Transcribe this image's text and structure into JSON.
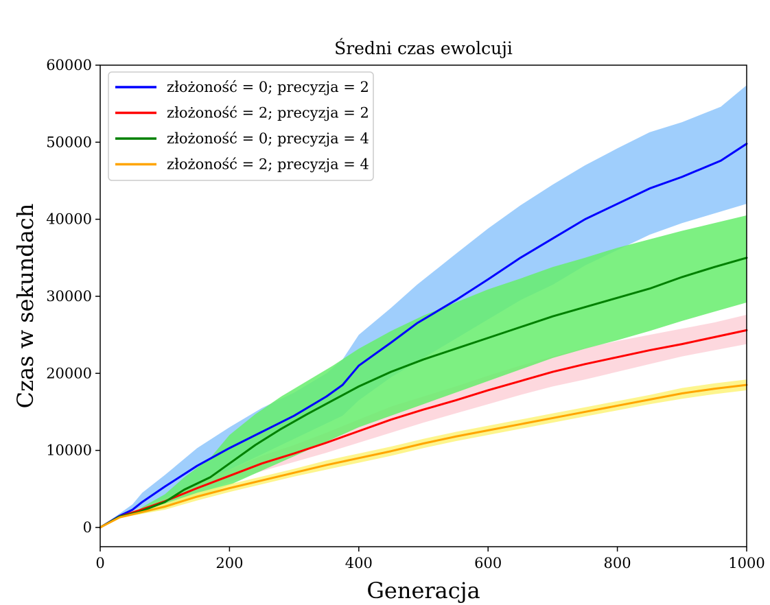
{
  "chart_data": {
    "type": "line",
    "title": "Średni czas ewolcuji",
    "xlabel": "Generacja",
    "ylabel": "Czas w sekundach",
    "xlim": [
      0,
      1000
    ],
    "ylim": [
      -2500,
      60000
    ],
    "xticks": [
      0,
      200,
      400,
      600,
      800,
      1000
    ],
    "yticks": [
      0,
      10000,
      20000,
      30000,
      40000,
      50000,
      60000
    ],
    "grid": false,
    "legend_position": "top-left",
    "series": [
      {
        "name": "złożoność = 0; precyzja = 2",
        "color": "#0000ff",
        "band_color": "#8ec5fb",
        "x": [
          0,
          30,
          50,
          65,
          100,
          150,
          200,
          250,
          300,
          350,
          375,
          400,
          450,
          490,
          550,
          600,
          650,
          700,
          750,
          800,
          850,
          900,
          960,
          1000
        ],
        "y": [
          0,
          1500,
          2300,
          3300,
          5300,
          8000,
          10300,
          12400,
          14500,
          17000,
          18500,
          21000,
          24000,
          26500,
          29500,
          32200,
          35000,
          37500,
          40000,
          42000,
          44000,
          45500,
          47600,
          49800
        ],
        "lower": [
          0,
          1300,
          1700,
          2300,
          3300,
          5300,
          7500,
          9500,
          11500,
          13500,
          14500,
          16500,
          19500,
          21500,
          24500,
          27000,
          29500,
          31500,
          34000,
          36000,
          38000,
          39500,
          41000,
          42000
        ],
        "upper": [
          0,
          1800,
          3000,
          4500,
          6800,
          10300,
          13000,
          15500,
          17500,
          20000,
          21800,
          25000,
          28500,
          31500,
          35500,
          38800,
          41800,
          44500,
          47000,
          49200,
          51300,
          52600,
          54600,
          57400
        ]
      },
      {
        "name": "złożoność = 2; precyzja = 2",
        "color": "#ff0000",
        "band_color": "#fdd1d8",
        "x": [
          0,
          30,
          60,
          100,
          150,
          200,
          250,
          300,
          350,
          400,
          450,
          500,
          550,
          600,
          650,
          700,
          750,
          800,
          850,
          900,
          950,
          1000
        ],
        "y": [
          0,
          1400,
          2200,
          3400,
          5100,
          6700,
          8300,
          9600,
          11000,
          12500,
          14000,
          15300,
          16500,
          17800,
          19000,
          20200,
          21200,
          22100,
          23000,
          23800,
          24700,
          25600
        ],
        "lower": [
          0,
          1300,
          1900,
          3000,
          4400,
          5900,
          7300,
          8500,
          9700,
          11000,
          12300,
          13600,
          14800,
          16000,
          17200,
          18300,
          19200,
          20200,
          21200,
          22200,
          23000,
          23800
        ],
        "upper": [
          0,
          1500,
          2500,
          3800,
          5800,
          7500,
          9300,
          10700,
          12300,
          14000,
          15700,
          17000,
          18300,
          19700,
          21000,
          22200,
          23300,
          24200,
          25000,
          25800,
          26600,
          27600
        ]
      },
      {
        "name": "złożoność = 0; precyzja = 4",
        "color": "#008000",
        "band_color": "#66ed6c",
        "x": [
          0,
          30,
          60,
          100,
          130,
          170,
          200,
          240,
          280,
          320,
          360,
          400,
          450,
          500,
          550,
          600,
          650,
          700,
          750,
          800,
          850,
          900,
          950,
          1000
        ],
        "y": [
          0,
          1400,
          2000,
          3300,
          4900,
          6500,
          8300,
          10700,
          12800,
          14700,
          16500,
          18300,
          20200,
          21800,
          23200,
          24600,
          26000,
          27400,
          28600,
          29800,
          31000,
          32500,
          33800,
          35000
        ],
        "lower": [
          0,
          1300,
          1700,
          2500,
          3500,
          4500,
          5500,
          7000,
          8500,
          10000,
          11500,
          13000,
          14500,
          16000,
          17500,
          19000,
          20500,
          22000,
          23200,
          24300,
          25500,
          26800,
          28000,
          29200
        ],
        "upper": [
          0,
          1500,
          2400,
          4300,
          6500,
          9000,
          12000,
          14700,
          17000,
          19000,
          21000,
          23200,
          25500,
          27500,
          29200,
          30900,
          32300,
          33800,
          35000,
          36300,
          37400,
          38500,
          39500,
          40500
        ]
      },
      {
        "name": "złożoność = 2; precyzja = 4",
        "color": "#ffa500",
        "band_color": "#fdf37a",
        "x": [
          0,
          30,
          60,
          100,
          150,
          200,
          250,
          300,
          350,
          400,
          450,
          500,
          550,
          600,
          650,
          700,
          750,
          800,
          850,
          900,
          950,
          1000
        ],
        "y": [
          0,
          1300,
          1900,
          2700,
          4000,
          5100,
          6100,
          7100,
          8100,
          9000,
          9900,
          10900,
          11800,
          12600,
          13400,
          14200,
          15000,
          15800,
          16600,
          17400,
          18000,
          18500
        ],
        "lower": [
          0,
          1200,
          1700,
          2300,
          3500,
          4600,
          5600,
          6600,
          7500,
          8400,
          9300,
          10300,
          11200,
          12000,
          12800,
          13600,
          14400,
          15200,
          16000,
          16700,
          17300,
          17800
        ],
        "upper": [
          0,
          1400,
          2100,
          3100,
          4500,
          5600,
          6600,
          7600,
          8700,
          9600,
          10500,
          11500,
          12400,
          13200,
          14000,
          14800,
          15600,
          16400,
          17200,
          18100,
          18700,
          19200
        ]
      }
    ]
  }
}
